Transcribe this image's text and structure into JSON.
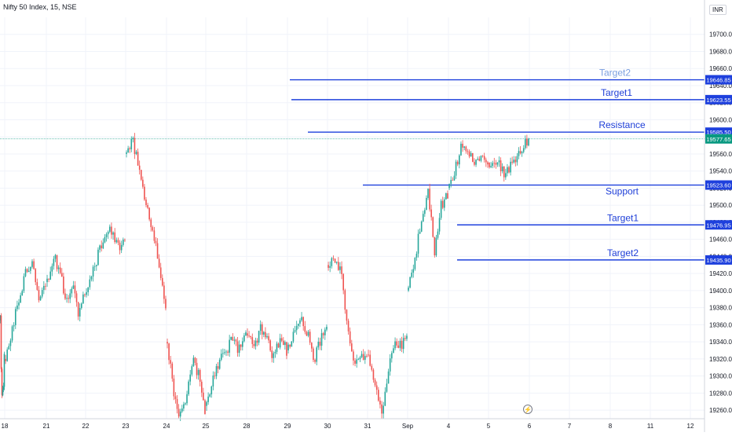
{
  "header": {
    "title": "Nifty 50 Index, 15, NSE",
    "currency": "INR"
  },
  "colors": {
    "up": "#26a69a",
    "down": "#ef5350",
    "level": "#1e40dd",
    "level_text": "#2040d8",
    "price_badge": "#089981",
    "target2_top_text": "#7a9fe0",
    "grid": "#f0f3fa",
    "axis_text": "#131722"
  },
  "icons": {
    "event": "lightning-icon"
  },
  "chart_data": {
    "type": "candlestick",
    "title": "Nifty 50 Index, 15, NSE",
    "ylim": [
      19250,
      19720
    ],
    "y_ticks": [
      19260,
      19280,
      19300,
      19320,
      19340,
      19360,
      19380,
      19400,
      19420,
      19440,
      19460,
      19480,
      19500,
      19520,
      19540,
      19560,
      19580,
      19600,
      19620,
      19640,
      19660,
      19680,
      19700
    ],
    "x_ticks": [
      "18",
      "21",
      "22",
      "23",
      "24",
      "25",
      "28",
      "29",
      "30",
      "31",
      "Sep",
      "4",
      "5",
      "6",
      "7",
      "8",
      "11",
      "12"
    ],
    "sessions": [
      {
        "label": "18",
        "path": [
          19365,
          19320,
          19270,
          19300,
          19262,
          19285,
          19320
        ]
      },
      {
        "label": "21",
        "path": [
          19320,
          19355,
          19390,
          19420,
          19438,
          19395,
          19410
        ]
      },
      {
        "label": "22",
        "path": [
          19410,
          19440,
          19425,
          19390,
          19408,
          19375,
          19395
        ]
      },
      {
        "label": "23",
        "path": [
          19395,
          19420,
          19450,
          19465,
          19470,
          19452,
          19458
        ]
      },
      {
        "label": "24",
        "path": [
          19560,
          19575,
          19540,
          19500,
          19470,
          19430,
          19380
        ]
      },
      {
        "label": "25",
        "path": [
          19340,
          19280,
          19250,
          19270,
          19320,
          19300,
          19262
        ]
      },
      {
        "label": "28",
        "path": [
          19265,
          19300,
          19320,
          19330,
          19345,
          19330,
          19350
        ]
      },
      {
        "label": "29",
        "path": [
          19350,
          19330,
          19355,
          19340,
          19320,
          19345,
          19330
        ]
      },
      {
        "label": "30",
        "path": [
          19330,
          19355,
          19365,
          19350,
          19318,
          19340,
          19360
        ]
      },
      {
        "label": "31",
        "path": [
          19430,
          19440,
          19420,
          19360,
          19310,
          19320,
          19325
        ]
      },
      {
        "label": "Sep",
        "path": [
          19325,
          19290,
          19255,
          19300,
          19340,
          19335,
          19350
        ]
      },
      {
        "label": "4",
        "path": [
          19400,
          19440,
          19480,
          19520,
          19440,
          19500,
          19510
        ]
      },
      {
        "label": "5",
        "path": [
          19520,
          19545,
          19570,
          19560,
          19545,
          19560,
          19550
        ]
      }
    ],
    "last_session_tail": [
      19550,
      19536,
      19550,
      19565,
      19578
    ],
    "levels": [
      {
        "name": "Target2",
        "price": 19646.85,
        "label_side": "top",
        "price_label": "19646.85"
      },
      {
        "name": "Target1",
        "price": 19623.55,
        "label_side": "top",
        "price_label": "19623.55"
      },
      {
        "name": "Resistance",
        "price": 19585.5,
        "label_side": "top",
        "price_label": "19585.50"
      },
      {
        "name": "Support",
        "price": 19523.6,
        "label_side": "bottom",
        "price_label": "19523.60"
      },
      {
        "name": "Target1",
        "price": 19476.95,
        "label_side": "top",
        "price_label": "19476.95"
      },
      {
        "name": "Target2",
        "price": 19435.9,
        "label_side": "top",
        "price_label": "19435.90"
      }
    ],
    "last_price": 19577.65,
    "last_price_label": "19577.65",
    "grid": true
  }
}
